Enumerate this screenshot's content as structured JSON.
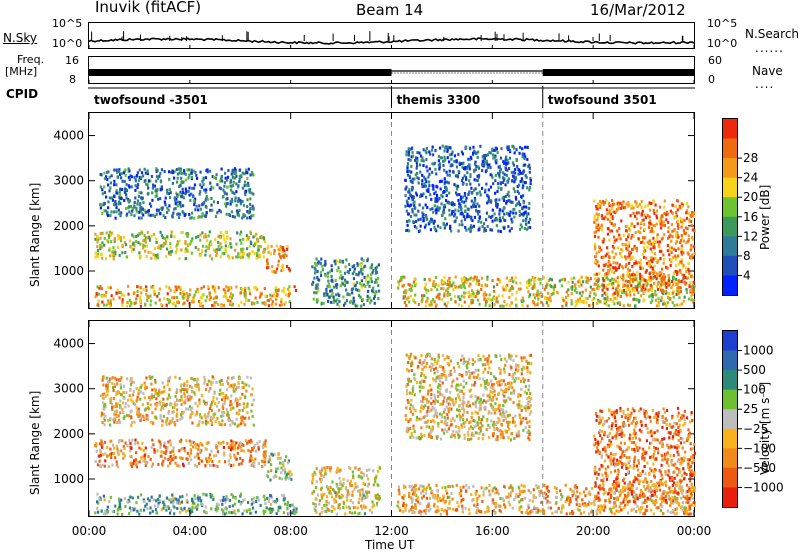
{
  "header": {
    "station": "Inuvik (fitACF)",
    "beam": "Beam 14",
    "date": "16/Mar/2012"
  },
  "sky_panel": {
    "left_label": "N.Sky",
    "right_label": "N.Search",
    "ticks_left": [
      "10^5",
      "10^0"
    ],
    "ticks_right": [
      "10^5",
      "10^0"
    ]
  },
  "freq_panel": {
    "left_label_line1": "Freq.",
    "left_label_line2": "[MHz]",
    "right_label": "Nave",
    "ticks_left": [
      "16",
      "8"
    ],
    "ticks_right": [
      "60",
      "0"
    ]
  },
  "cpid": {
    "label": "CPID",
    "segments": [
      {
        "name": "twofsound -3501",
        "start_h": 0,
        "end_h": 12
      },
      {
        "name": "themis 3300",
        "start_h": 12,
        "end_h": 18
      },
      {
        "name": "twofsound 3501",
        "start_h": 18,
        "end_h": 24
      }
    ]
  },
  "x_axis": {
    "label": "Time UT",
    "ticks": [
      "00:00",
      "04:00",
      "08:00",
      "12:00",
      "16:00",
      "20:00",
      "00:00"
    ]
  },
  "colors": {
    "power": [
      "#0022ff",
      "#1f4fb8",
      "#2e7a9a",
      "#3a9a5a",
      "#6cc530",
      "#f6d21a",
      "#f59a18",
      "#f06a10",
      "#ee2a0c"
    ],
    "velocity": [
      "#1f3fd0",
      "#2e6ab0",
      "#2c8a78",
      "#6cc030",
      "#bdbdbd",
      "#f7b21e",
      "#f08a1a",
      "#ee5a12",
      "#e81f0c"
    ]
  },
  "chart_data": [
    {
      "type": "heatmap",
      "title": "Power",
      "xlabel": "Time UT",
      "ylabel": "Slant Range [km]",
      "xlim_hours": [
        0,
        24
      ],
      "ylim": [
        180,
        4500
      ],
      "yticks": [
        "1000",
        "2000",
        "3000",
        "4000"
      ],
      "colorbar_label": "Power [dB]",
      "colorbar_ticks": [
        "4",
        "8",
        "12",
        "16",
        "20",
        "24",
        "28"
      ],
      "regions": [
        {
          "t": [
            0.2,
            8.2
          ],
          "r": [
            250,
            700
          ],
          "level": 0.7
        },
        {
          "t": [
            0.2,
            7.0
          ],
          "r": [
            1300,
            1900
          ],
          "level": 0.55
        },
        {
          "t": [
            0.4,
            6.5
          ],
          "r": [
            2200,
            3300
          ],
          "level": 0.25
        },
        {
          "t": [
            7.0,
            8.0
          ],
          "r": [
            1000,
            1600
          ],
          "level": 0.75
        },
        {
          "t": [
            8.8,
            11.5
          ],
          "r": [
            250,
            1300
          ],
          "level": 0.35
        },
        {
          "t": [
            12.2,
            18.0
          ],
          "r": [
            250,
            900
          ],
          "level": 0.65
        },
        {
          "t": [
            12.5,
            17.5
          ],
          "r": [
            1900,
            3800
          ],
          "level": 0.2
        },
        {
          "t": [
            18.0,
            24.0
          ],
          "r": [
            250,
            900
          ],
          "level": 0.6
        },
        {
          "t": [
            20.0,
            24.0
          ],
          "r": [
            500,
            2600
          ],
          "level": 0.8
        }
      ]
    },
    {
      "type": "heatmap",
      "title": "Velocity",
      "xlabel": "Time UT",
      "ylabel": "Slant Range [km]",
      "xlim_hours": [
        0,
        24
      ],
      "ylim": [
        180,
        4500
      ],
      "yticks": [
        "1000",
        "2000",
        "3000",
        "4000"
      ],
      "colorbar_label": "Velocity [m s⁻¹]",
      "colorbar_ticks": [
        "1000",
        "500",
        "100",
        "25",
        "−25",
        "−100",
        "−500",
        "−1000"
      ],
      "regions": [
        {
          "t": [
            0.2,
            8.2
          ],
          "r": [
            250,
            700
          ],
          "level": 0.35
        },
        {
          "t": [
            0.2,
            7.0
          ],
          "r": [
            1300,
            1900
          ],
          "level": 0.7
        },
        {
          "t": [
            0.4,
            6.5
          ],
          "r": [
            2200,
            3300
          ],
          "level": 0.6
        },
        {
          "t": [
            7.0,
            8.0
          ],
          "r": [
            1000,
            1600
          ],
          "level": 0.45
        },
        {
          "t": [
            8.8,
            11.5
          ],
          "r": [
            250,
            1300
          ],
          "level": 0.55
        },
        {
          "t": [
            12.2,
            18.0
          ],
          "r": [
            250,
            900
          ],
          "level": 0.65
        },
        {
          "t": [
            12.5,
            17.5
          ],
          "r": [
            1900,
            3800
          ],
          "level": 0.6
        },
        {
          "t": [
            18.0,
            24.0
          ],
          "r": [
            250,
            900
          ],
          "level": 0.65
        },
        {
          "t": [
            20.0,
            24.0
          ],
          "r": [
            500,
            2600
          ],
          "level": 0.75
        }
      ]
    }
  ]
}
